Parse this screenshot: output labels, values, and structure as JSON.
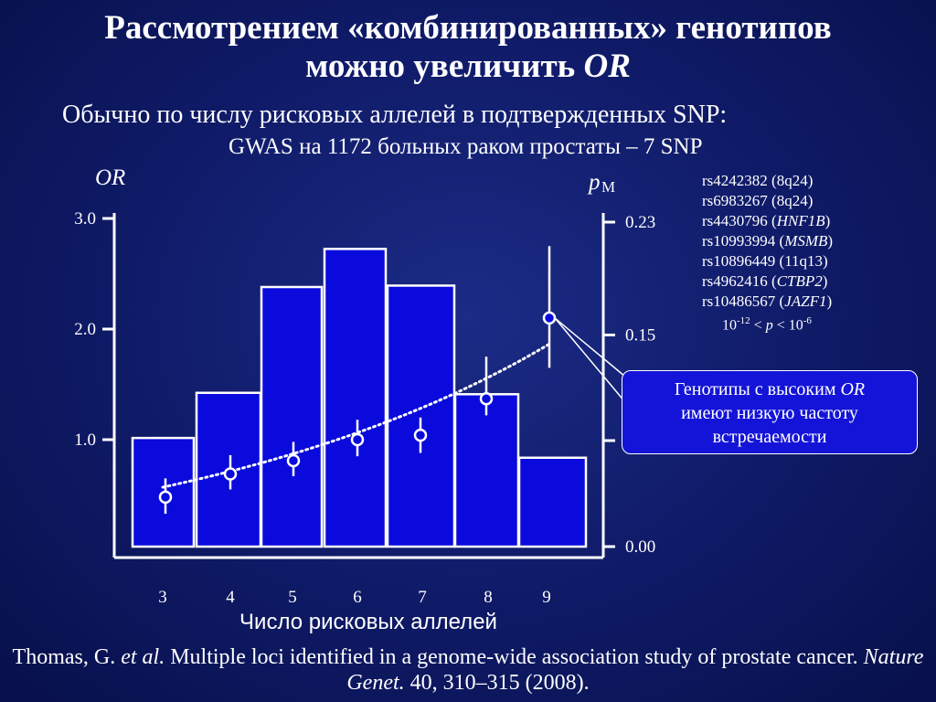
{
  "header": {
    "title_line1": "Рассмотрением «комбинированных» генотипов",
    "title_line2_main": "можно увеличить ",
    "title_line2_italic": "OR",
    "subtitle1": "Обычно по числу рисковых аллелей в подтвержденных SNP:",
    "subtitle2": "GWAS на 1172 больных раком простаты – 7 SNP"
  },
  "snp_list": [
    {
      "pre": "rs4242382 (8q24)",
      "ital": "",
      "post": ""
    },
    {
      "pre": "rs6983267 (8q24)",
      "ital": "",
      "post": ""
    },
    {
      "pre": "rs4430796 (",
      "ital": "HNF1B",
      "post": ")"
    },
    {
      "pre": "rs10993994 (",
      "ital": "MSMB",
      "post": ")"
    },
    {
      "pre": "rs10896449 (11q13)",
      "ital": "",
      "post": ""
    },
    {
      "pre": "rs4962416 (",
      "ital": "CTBP2",
      "post": ")"
    },
    {
      "pre": "rs10486567 (",
      "ital": "JAZF1",
      "post": ")"
    }
  ],
  "pvalue": {
    "base1": "10",
    "exp1": "-12",
    "lt1": " < ",
    "p": "p",
    "lt2": " < ",
    "base2": "10",
    "exp2": "-6"
  },
  "callout": {
    "pre": "Генотипы с высоким ",
    "ital": "OR",
    "line2": "имеют низкую частоту",
    "line3": "встречаемости"
  },
  "footer": {
    "author": "Thomas, G. ",
    "etal": "et al.",
    "title": " Multiple loci identified in a genome-wide association study of prostate cancer. ",
    "journal": "Nature Genet.",
    "rest": " 40, 310–315 (2008)."
  },
  "chart_data": {
    "type": "bar",
    "categories": [
      "3",
      "4",
      "5",
      "6",
      "7",
      "8",
      "9"
    ],
    "xlabel": "Число рисковых аллелей",
    "left_axis": {
      "label": "OR",
      "ticks": [
        "1.0",
        "2.0",
        "3.0"
      ]
    },
    "right_axis": {
      "label_main": "p",
      "label_sub": "M",
      "ticks": [
        "0.00",
        "0.15",
        "0.23"
      ],
      "ylim": [
        0,
        0.23
      ]
    },
    "series": [
      {
        "type": "bar",
        "axis": "right",
        "values": [
          0.077,
          0.109,
          0.184,
          0.211,
          0.185,
          0.108,
          0.063
        ]
      },
      {
        "type": "point_errorbar",
        "axis": "left",
        "values": [
          0.48,
          0.69,
          0.81,
          1.0,
          1.04,
          1.37,
          2.1
        ],
        "lower": [
          0.33,
          0.55,
          0.67,
          0.85,
          0.88,
          1.22,
          1.65
        ],
        "upper": [
          0.65,
          0.86,
          0.98,
          1.18,
          1.2,
          1.75,
          2.75
        ]
      },
      {
        "type": "trend_dotted",
        "axis": "left",
        "x": [
          3,
          9
        ],
        "y": [
          0.57,
          1.87
        ]
      }
    ],
    "colors": {
      "bar_fill": "#0a0adc",
      "bar_stroke": "#ffffff",
      "marker": "#ffffff",
      "callout_fill": "#1414d8"
    }
  }
}
